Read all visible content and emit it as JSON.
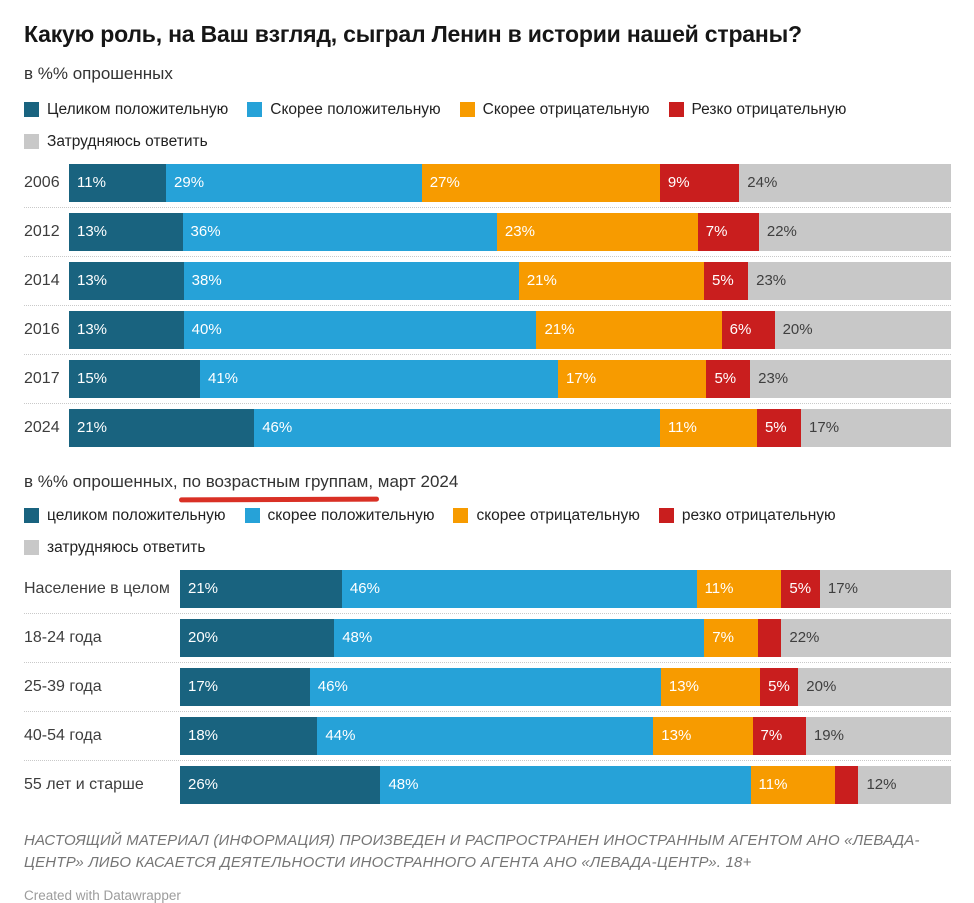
{
  "title": "Какую роль, на Ваш взгляд, сыграл Ленин в истории нашей страны?",
  "palette": {
    "series_colors": [
      "#19637f",
      "#26a2d8",
      "#f79b00",
      "#c91e1e",
      "#c8c8c8"
    ],
    "highlight_underline": "#d93025",
    "gray_segment_text": "#3f3f3f",
    "bar_label_text": "#ffffff"
  },
  "chart_data": [
    {
      "type": "bar",
      "orientation": "horizontal",
      "stacked": true,
      "subtitle": "в %% опрошенных",
      "legend": [
        "Целиком положительную",
        "Скорее положительную",
        "Скорее отрицательную",
        "Резко отрицательную",
        "Затрудняюсь ответить"
      ],
      "categories": [
        "2006",
        "2012",
        "2014",
        "2016",
        "2017",
        "2024"
      ],
      "series": [
        {
          "name": "Целиком положительную",
          "values": [
            11,
            13,
            13,
            13,
            15,
            21
          ],
          "labels": [
            "11%",
            "13%",
            "13%",
            "13%",
            "15%",
            "21%"
          ]
        },
        {
          "name": "Скорее положительную",
          "values": [
            29,
            36,
            38,
            40,
            41,
            46
          ],
          "labels": [
            "29%",
            "36%",
            "38%",
            "40%",
            "41%",
            "46%"
          ]
        },
        {
          "name": "Скорее отрицательную",
          "values": [
            27,
            23,
            21,
            21,
            17,
            11
          ],
          "labels": [
            "27%",
            "23%",
            "21%",
            "21%",
            "17%",
            "11%"
          ]
        },
        {
          "name": "Резко отрицательную",
          "values": [
            9,
            7,
            5,
            6,
            5,
            5
          ],
          "labels": [
            "9%",
            "7%",
            "5%",
            "6%",
            "5%",
            "5%"
          ]
        },
        {
          "name": "Затрудняюсь ответить",
          "values": [
            24,
            22,
            23,
            20,
            23,
            17
          ],
          "labels": [
            "24%",
            "22%",
            "23%",
            "20%",
            "23%",
            "17%"
          ]
        }
      ],
      "xlim": [
        0,
        100
      ],
      "grid": false,
      "legend_position": "top"
    },
    {
      "type": "bar",
      "orientation": "horizontal",
      "stacked": true,
      "subtitle_prefix": "в %% опрошенных, ",
      "subtitle_highlight": "по возрастным группам,",
      "subtitle_suffix": " март 2024",
      "legend": [
        "целиком положительную",
        "скорее положительную",
        "скорее отрицательную",
        "резко отрицательную",
        "затрудняюсь ответить"
      ],
      "categories": [
        "Население в целом",
        "18-24 года",
        "25-39 года",
        "40-54 года",
        "55 лет и старше"
      ],
      "series": [
        {
          "name": "целиком положительную",
          "values": [
            21,
            20,
            17,
            18,
            26
          ],
          "labels": [
            "21%",
            "20%",
            "17%",
            "18%",
            "26%"
          ]
        },
        {
          "name": "скорее положительную",
          "values": [
            46,
            48,
            46,
            44,
            48
          ],
          "labels": [
            "46%",
            "48%",
            "46%",
            "44%",
            "48%"
          ]
        },
        {
          "name": "скорее отрицательную",
          "values": [
            11,
            7,
            13,
            13,
            11
          ],
          "labels": [
            "11%",
            "7%",
            "13%",
            "13%",
            "11%"
          ]
        },
        {
          "name": "резко отрицательную",
          "values": [
            5,
            3,
            5,
            7,
            3
          ],
          "labels": [
            "5%",
            "",
            "5%",
            "7%",
            ""
          ]
        },
        {
          "name": "затрудняюсь ответить",
          "values": [
            17,
            22,
            20,
            19,
            12
          ],
          "labels": [
            "17%",
            "22%",
            "20%",
            "19%",
            "12%"
          ]
        }
      ],
      "xlim": [
        0,
        100
      ],
      "grid": false,
      "legend_position": "top"
    }
  ],
  "footnote": "НАСТОЯЩИЙ МАТЕРИАЛ (ИНФОРМАЦИЯ) ПРОИЗВЕДЕН И РАСПРОСТРАНЕН ИНОСТРАННЫМ АГЕНТОМ АНО «ЛЕВАДА-ЦЕНТР» ЛИБО КАСАЕТСЯ ДЕЯТЕЛЬНОСТИ ИНОСТРАННОГО АГЕНТА АНО «ЛЕВАДА-ЦЕНТР». 18+",
  "attribution": "Created with Datawrapper"
}
